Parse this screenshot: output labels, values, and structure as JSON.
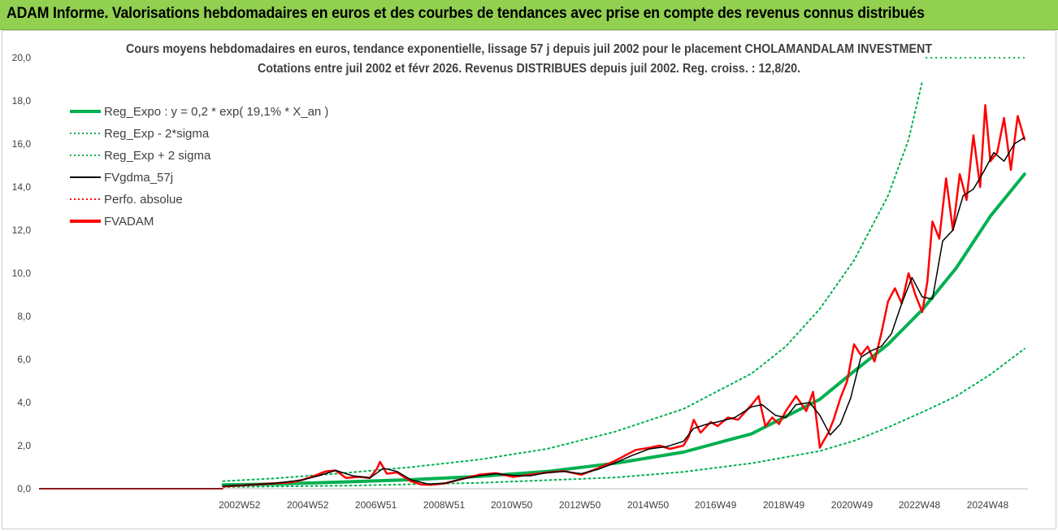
{
  "banner": {
    "title": "ADAM Informe. Valorisations hebdomadaires en euros et des courbes de tendances avec prise en compte des revenus connus distribués"
  },
  "colors": {
    "banner_bg": "#92d050",
    "reg_expo": "#00b050",
    "sigma_bands": "#00b050",
    "fvgdma": "#000000",
    "perfo": "#ff0000",
    "fvadam": "#ff0000"
  },
  "chart_data": {
    "type": "line",
    "title_line1": "Cours moyens hebdomadaires en euros, tendance exponentielle, lissage 57 j depuis juil 2002 pour le placement CHOLAMANDALAM INVESTMENT",
    "title_line2": "Cotations entre juil 2002 et févr 2026.  Revenus DISTRIBUES depuis juil 2002.  Reg. croiss. : 12,8/20.",
    "ylim": [
      0,
      20
    ],
    "y_ticks": [
      "0,0",
      "2,0",
      "4,0",
      "6,0",
      "8,0",
      "10,0",
      "12,0",
      "14,0",
      "16,0",
      "18,0",
      "20,0"
    ],
    "x_ticks": [
      "2002W52",
      "2004W52",
      "2006W51",
      "2008W51",
      "2010W50",
      "2012W50",
      "2014W50",
      "2016W49",
      "2018W49",
      "2020W49",
      "2022W48",
      "2024W48"
    ],
    "x_tick_years": [
      2002.98,
      2004.98,
      2006.98,
      2008.98,
      2010.96,
      2012.96,
      2014.96,
      2016.94,
      2018.94,
      2020.94,
      2022.92,
      2024.92
    ],
    "x_range_years": [
      1997.1,
      2026.1
    ],
    "data_start_year": 2002.5,
    "grid": false,
    "legend": {
      "position": "top-left",
      "items": [
        {
          "label": "Reg_Expo : y = 0,2 * exp( 19,1% *  X_an )",
          "style": "solid-thick",
          "color": "#00b050"
        },
        {
          "label": "Reg_Exp - 2*sigma",
          "style": "dotted",
          "color": "#00b050"
        },
        {
          "label": "Reg_Exp + 2 sigma",
          "style": "dotted",
          "color": "#00b050"
        },
        {
          "label": "FVgdma_57j",
          "style": "solid",
          "color": "#000000"
        },
        {
          "label": "Perfo. absolue",
          "style": "dotted",
          "color": "#ff0000"
        },
        {
          "label": "FVADAM",
          "style": "solid-thick",
          "color": "#ff0000"
        }
      ]
    },
    "series": [
      {
        "name": "Reg_Expo : y = 0,2 * exp( 19,1% *  X_an )",
        "x": [
          2002.5,
          2004,
          2006,
          2008,
          2010,
          2012,
          2014,
          2016,
          2018,
          2019,
          2020,
          2021,
          2022,
          2023,
          2024,
          2025,
          2026
        ],
        "values": [
          0.18,
          0.22,
          0.31,
          0.42,
          0.57,
          0.8,
          1.18,
          1.7,
          2.55,
          3.35,
          4.15,
          5.45,
          6.7,
          8.3,
          10.25,
          12.65,
          14.6
        ]
      },
      {
        "name": "Reg_Exp - 2*sigma",
        "x": [
          2002.5,
          2006,
          2010,
          2014,
          2016,
          2018,
          2020,
          2021,
          2022,
          2023,
          2024,
          2025,
          2026
        ],
        "values": [
          0.08,
          0.14,
          0.27,
          0.52,
          0.78,
          1.18,
          1.75,
          2.22,
          2.85,
          3.55,
          4.3,
          5.3,
          6.5
        ]
      },
      {
        "name": "Reg_Exp + 2 sigma",
        "x": [
          2002.5,
          2004,
          2006,
          2008,
          2010,
          2012,
          2014,
          2016,
          2018,
          2019,
          2020,
          2021,
          2022,
          2022.6,
          2023
        ],
        "values": [
          0.35,
          0.48,
          0.72,
          1.0,
          1.35,
          1.85,
          2.65,
          3.7,
          5.35,
          6.6,
          8.35,
          10.6,
          13.6,
          16.2,
          18.9
        ]
      },
      {
        "name": "FVgdma_57j",
        "x": [
          2002.5,
          2003,
          2004,
          2004.8,
          2005.3,
          2005.8,
          2006.3,
          2006.8,
          2007.2,
          2007.6,
          2008,
          2008.5,
          2009,
          2009.5,
          2010,
          2010.5,
          2011,
          2011.5,
          2012,
          2012.5,
          2013,
          2013.5,
          2014,
          2014.5,
          2015,
          2015.5,
          2016,
          2016.3,
          2016.7,
          2017,
          2017.5,
          2018,
          2018.3,
          2018.7,
          2019,
          2019.3,
          2019.7,
          2020,
          2020.3,
          2020.6,
          2020.9,
          2021.2,
          2021.5,
          2021.8,
          2022.1,
          2022.4,
          2022.7,
          2023,
          2023.3,
          2023.6,
          2023.9,
          2024.2,
          2024.5,
          2024.8,
          2025.1,
          2025.4,
          2025.7,
          2026
        ],
        "values": [
          0.12,
          0.15,
          0.25,
          0.4,
          0.6,
          0.85,
          0.6,
          0.5,
          0.95,
          0.8,
          0.42,
          0.22,
          0.25,
          0.45,
          0.6,
          0.7,
          0.62,
          0.6,
          0.75,
          0.8,
          0.7,
          0.9,
          1.2,
          1.55,
          1.85,
          1.95,
          2.2,
          2.8,
          3.0,
          3.1,
          3.3,
          3.8,
          3.9,
          3.4,
          3.3,
          3.9,
          4.0,
          3.4,
          2.5,
          3.0,
          4.2,
          6.1,
          6.4,
          6.6,
          7.2,
          8.6,
          9.8,
          8.9,
          8.8,
          11.5,
          12.0,
          13.6,
          13.9,
          14.7,
          15.6,
          15.2,
          16.0,
          16.3
        ]
      },
      {
        "name": "FVADAM",
        "x": [
          2002.5,
          2003,
          2003.5,
          2004,
          2004.5,
          2004.8,
          2005.1,
          2005.5,
          2005.8,
          2006.1,
          2006.5,
          2006.8,
          2007,
          2007.1,
          2007.3,
          2007.6,
          2008,
          2008.3,
          2008.6,
          2009,
          2009.5,
          2010,
          2010.5,
          2011,
          2011.5,
          2012,
          2012.5,
          2013,
          2013.5,
          2014,
          2014.3,
          2014.6,
          2015,
          2015.3,
          2015.6,
          2016,
          2016.15,
          2016.3,
          2016.5,
          2016.8,
          2017,
          2017.3,
          2017.6,
          2018,
          2018.2,
          2018.4,
          2018.6,
          2018.8,
          2019,
          2019.3,
          2019.6,
          2019.8,
          2020,
          2020.1,
          2020.25,
          2020.4,
          2020.6,
          2020.8,
          2021,
          2021.2,
          2021.4,
          2021.6,
          2021.8,
          2022,
          2022.2,
          2022.4,
          2022.6,
          2022.8,
          2023,
          2023.15,
          2023.3,
          2023.5,
          2023.7,
          2023.9,
          2024.1,
          2024.3,
          2024.5,
          2024.7,
          2024.85,
          2025,
          2025.2,
          2025.4,
          2025.6,
          2025.8,
          2026
        ],
        "values": [
          0.1,
          0.15,
          0.2,
          0.25,
          0.3,
          0.4,
          0.55,
          0.8,
          0.85,
          0.5,
          0.55,
          0.5,
          0.9,
          1.25,
          0.7,
          0.75,
          0.35,
          0.2,
          0.18,
          0.25,
          0.45,
          0.65,
          0.72,
          0.55,
          0.65,
          0.75,
          0.82,
          0.65,
          0.95,
          1.3,
          1.55,
          1.8,
          1.9,
          2.0,
          1.85,
          2.0,
          2.4,
          3.2,
          2.6,
          3.1,
          2.9,
          3.3,
          3.2,
          3.9,
          4.3,
          2.9,
          3.3,
          3.0,
          3.6,
          4.3,
          3.6,
          4.5,
          1.9,
          2.2,
          2.6,
          3.2,
          4.2,
          5.0,
          6.7,
          6.2,
          6.6,
          5.9,
          7.2,
          8.7,
          9.3,
          8.6,
          10.0,
          9.0,
          8.2,
          9.6,
          12.4,
          11.6,
          14.4,
          12.0,
          14.6,
          13.4,
          16.4,
          14.0,
          17.8,
          15.2,
          15.6,
          17.2,
          14.8,
          17.3,
          16.2
        ]
      }
    ]
  }
}
